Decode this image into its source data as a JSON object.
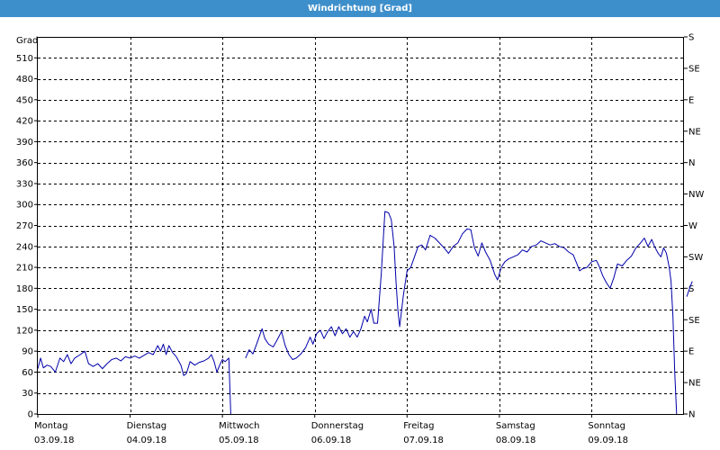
{
  "window": {
    "title": "Windrichtung [Grad]"
  },
  "chart_data": {
    "type": "line",
    "title": "Windrichtung [Grad]",
    "ylabel": "Grad",
    "ylim": [
      0,
      540
    ],
    "y_ticks": [
      0,
      30,
      60,
      90,
      120,
      150,
      180,
      210,
      240,
      270,
      300,
      330,
      360,
      390,
      420,
      450,
      480,
      510
    ],
    "y2_ticks": [
      {
        "value": 0,
        "label": "N"
      },
      {
        "value": 45,
        "label": "NE"
      },
      {
        "value": 90,
        "label": "E"
      },
      {
        "value": 135,
        "label": "SE"
      },
      {
        "value": 180,
        "label": "S"
      },
      {
        "value": 225,
        "label": "SW"
      },
      {
        "value": 270,
        "label": "W"
      },
      {
        "value": 315,
        "label": "NW"
      },
      {
        "value": 360,
        "label": "N"
      },
      {
        "value": 405,
        "label": "NE"
      },
      {
        "value": 450,
        "label": "E"
      },
      {
        "value": 495,
        "label": "SE"
      },
      {
        "value": 540,
        "label": "S"
      }
    ],
    "xlim": [
      0,
      7
    ],
    "x_ticks": [
      {
        "value": 0,
        "day": "Montag",
        "date": "03.09.18"
      },
      {
        "value": 1,
        "day": "Dienstag",
        "date": "04.09.18"
      },
      {
        "value": 2,
        "day": "Mittwoch",
        "date": "05.09.18"
      },
      {
        "value": 3,
        "day": "Donnerstag",
        "date": "06.09.18"
      },
      {
        "value": 4,
        "day": "Freitag",
        "date": "07.09.18"
      },
      {
        "value": 5,
        "day": "Samstag",
        "date": "08.09.18"
      },
      {
        "value": 6,
        "day": "Sonntag",
        "date": "09.09.18"
      }
    ],
    "grid": true,
    "color": "#0000aa",
    "series": [
      {
        "segments": [
          [
            [
              0.0,
              65
            ],
            [
              0.03,
              80
            ],
            [
              0.06,
              66
            ],
            [
              0.1,
              70
            ],
            [
              0.14,
              68
            ],
            [
              0.19,
              60
            ],
            [
              0.24,
              80
            ],
            [
              0.28,
              75
            ],
            [
              0.32,
              85
            ],
            [
              0.36,
              72
            ],
            [
              0.4,
              80
            ],
            [
              0.46,
              85
            ],
            [
              0.51,
              90
            ],
            [
              0.55,
              72
            ],
            [
              0.6,
              68
            ],
            [
              0.65,
              72
            ],
            [
              0.7,
              65
            ],
            [
              0.75,
              72
            ],
            [
              0.8,
              78
            ],
            [
              0.85,
              80
            ],
            [
              0.9,
              76
            ],
            [
              0.95,
              82
            ],
            [
              1.0,
              80
            ],
            [
              1.05,
              83
            ],
            [
              1.1,
              80
            ],
            [
              1.15,
              84
            ],
            [
              1.2,
              88
            ],
            [
              1.25,
              85
            ],
            [
              1.3,
              98
            ],
            [
              1.33,
              90
            ],
            [
              1.36,
              100
            ],
            [
              1.39,
              85
            ],
            [
              1.42,
              98
            ],
            [
              1.46,
              88
            ],
            [
              1.5,
              82
            ],
            [
              1.55,
              70
            ],
            [
              1.58,
              55
            ],
            [
              1.61,
              58
            ],
            [
              1.65,
              75
            ],
            [
              1.7,
              70
            ],
            [
              1.75,
              74
            ],
            [
              1.8,
              76
            ],
            [
              1.85,
              80
            ],
            [
              1.88,
              85
            ],
            [
              1.91,
              75
            ],
            [
              1.94,
              60
            ],
            [
              1.97,
              70
            ],
            [
              2.0,
              78
            ],
            [
              2.03,
              75
            ],
            [
              2.07,
              80
            ],
            [
              2.09,
              0
            ]
          ],
          [
            [
              2.25,
              80
            ],
            [
              2.29,
              92
            ],
            [
              2.33,
              86
            ],
            [
              2.37,
              100
            ],
            [
              2.41,
              115
            ],
            [
              2.43,
              122
            ],
            [
              2.46,
              108
            ],
            [
              2.5,
              100
            ],
            [
              2.55,
              96
            ],
            [
              2.6,
              108
            ],
            [
              2.64,
              118
            ],
            [
              2.68,
              98
            ],
            [
              2.72,
              85
            ],
            [
              2.76,
              78
            ],
            [
              2.8,
              80
            ],
            [
              2.85,
              86
            ],
            [
              2.9,
              95
            ],
            [
              2.95,
              110
            ],
            [
              2.98,
              100
            ],
            [
              3.02,
              115
            ],
            [
              3.06,
              120
            ],
            [
              3.1,
              108
            ],
            [
              3.14,
              118
            ],
            [
              3.18,
              125
            ],
            [
              3.22,
              112
            ],
            [
              3.26,
              125
            ],
            [
              3.3,
              115
            ],
            [
              3.34,
              122
            ],
            [
              3.38,
              110
            ],
            [
              3.42,
              118
            ],
            [
              3.46,
              110
            ],
            [
              3.5,
              122
            ],
            [
              3.54,
              140
            ],
            [
              3.57,
              132
            ],
            [
              3.61,
              150
            ],
            [
              3.64,
              130
            ],
            [
              3.68,
              130
            ],
            [
              3.72,
              200
            ],
            [
              3.76,
              290
            ],
            [
              3.8,
              288
            ],
            [
              3.83,
              278
            ],
            [
              3.86,
              240
            ],
            [
              3.88,
              190
            ],
            [
              3.9,
              150
            ],
            [
              3.92,
              125
            ],
            [
              3.96,
              170
            ],
            [
              4.0,
              205
            ],
            [
              4.04,
              210
            ],
            [
              4.08,
              225
            ],
            [
              4.12,
              240
            ],
            [
              4.16,
              242
            ],
            [
              4.2,
              235
            ],
            [
              4.25,
              256
            ],
            [
              4.3,
              252
            ],
            [
              4.35,
              245
            ],
            [
              4.4,
              238
            ],
            [
              4.45,
              230
            ],
            [
              4.5,
              240
            ],
            [
              4.55,
              245
            ],
            [
              4.6,
              258
            ],
            [
              4.65,
              265
            ],
            [
              4.69,
              264
            ],
            [
              4.73,
              238
            ],
            [
              4.77,
              226
            ],
            [
              4.81,
              245
            ],
            [
              4.85,
              232
            ],
            [
              4.9,
              220
            ],
            [
              4.95,
              200
            ],
            [
              4.98,
              192
            ],
            [
              5.02,
              210
            ],
            [
              5.06,
              218
            ],
            [
              5.1,
              222
            ],
            [
              5.15,
              225
            ],
            [
              5.2,
              228
            ],
            [
              5.25,
              235
            ],
            [
              5.3,
              232
            ],
            [
              5.35,
              240
            ],
            [
              5.4,
              242
            ],
            [
              5.45,
              248
            ],
            [
              5.5,
              245
            ],
            [
              5.55,
              242
            ],
            [
              5.6,
              244
            ],
            [
              5.65,
              240
            ],
            [
              5.7,
              238
            ],
            [
              5.75,
              232
            ],
            [
              5.8,
              228
            ],
            [
              5.84,
              215
            ],
            [
              5.87,
              205
            ],
            [
              5.9,
              208
            ],
            [
              5.95,
              210
            ],
            [
              6.0,
              218
            ],
            [
              6.05,
              220
            ],
            [
              6.08,
              212
            ],
            [
              6.12,
              198
            ],
            [
              6.16,
              188
            ],
            [
              6.2,
              180
            ],
            [
              6.24,
              195
            ],
            [
              6.28,
              215
            ],
            [
              6.33,
              212
            ],
            [
              6.38,
              220
            ],
            [
              6.43,
              226
            ],
            [
              6.48,
              238
            ],
            [
              6.53,
              245
            ],
            [
              6.57,
              252
            ],
            [
              6.61,
              240
            ],
            [
              6.65,
              250
            ],
            [
              6.68,
              240
            ],
            [
              6.72,
              230
            ],
            [
              6.75,
              225
            ],
            [
              6.78,
              238
            ],
            [
              6.81,
              230
            ],
            [
              6.84,
              210
            ],
            [
              6.86,
              190
            ],
            [
              6.88,
              140
            ],
            [
              6.9,
              60
            ],
            [
              6.92,
              0
            ]
          ],
          [
            [
              7.03,
              168
            ],
            [
              7.06,
              180
            ],
            [
              7.09,
              190
            ]
          ]
        ]
      }
    ]
  }
}
